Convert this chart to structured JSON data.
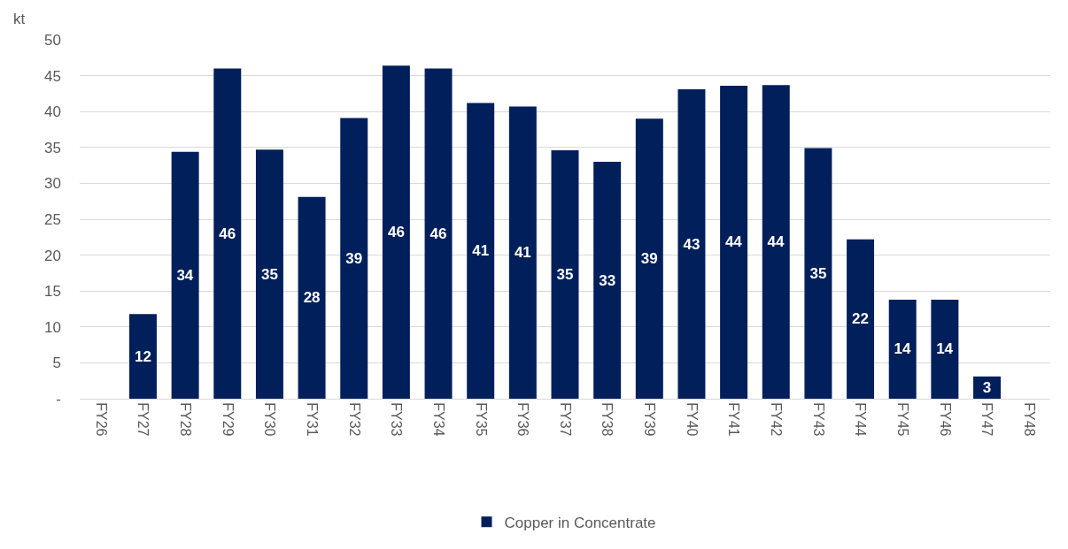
{
  "chart_data": {
    "type": "bar",
    "ylabel": "kt",
    "categories": [
      "FY26",
      "FY27",
      "FY28",
      "FY29",
      "FY30",
      "FY31",
      "FY32",
      "FY33",
      "FY34",
      "FY35",
      "FY36",
      "FY37",
      "FY38",
      "FY39",
      "FY40",
      "FY41",
      "FY42",
      "FY43",
      "FY44",
      "FY45",
      "FY46",
      "FY47",
      "FY48"
    ],
    "series": [
      {
        "name": "Copper in Concentrate",
        "color": "#001f5b",
        "values": [
          null,
          11.8,
          34.4,
          46.0,
          34.7,
          28.1,
          39.1,
          46.4,
          46.0,
          41.2,
          40.7,
          34.6,
          33.0,
          39.0,
          43.1,
          43.6,
          43.7,
          34.9,
          22.2,
          13.8,
          13.8,
          3.1,
          null
        ],
        "value_labels": [
          null,
          "12",
          "34",
          "46",
          "35",
          "28",
          "39",
          "46",
          "46",
          "41",
          "41",
          "35",
          "33",
          "39",
          "43",
          "44",
          "44",
          "35",
          "22",
          "14",
          "14",
          "3",
          null
        ]
      }
    ],
    "ylim": [
      0,
      50
    ],
    "yticks": [
      {
        "value": 0,
        "label": "-"
      },
      5,
      10,
      15,
      20,
      25,
      30,
      35,
      40,
      45,
      50
    ],
    "grid": "y",
    "legend": "bottom"
  }
}
